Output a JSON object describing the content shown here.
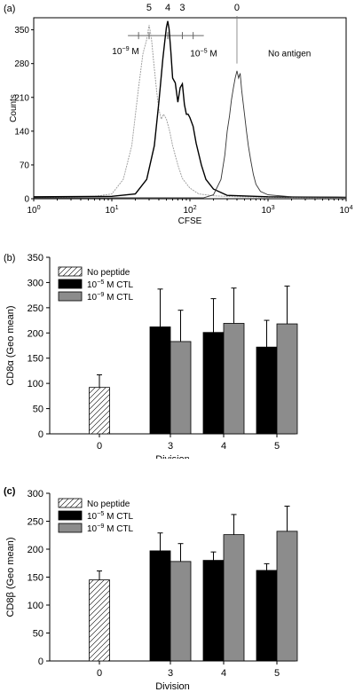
{
  "chart_data": [
    {
      "type": "line",
      "panel_label": "(a)",
      "xlabel": "CFSE",
      "ylabel": "Counts",
      "x_scale": "log",
      "xlim": [
        1,
        10000
      ],
      "ylim": [
        0,
        375
      ],
      "x_tick_labels": [
        {
          "base": "10",
          "exp": "0"
        },
        {
          "base": "10",
          "exp": "1"
        },
        {
          "base": "10",
          "exp": "2"
        },
        {
          "base": "10",
          "exp": "3"
        },
        {
          "base": "10",
          "exp": "4"
        }
      ],
      "y_ticks": [
        0,
        70,
        140,
        210,
        280,
        350
      ],
      "top_labels": [
        {
          "text": "5",
          "x": 30
        },
        {
          "text": "4",
          "x": 52
        },
        {
          "text": "3",
          "x": 80
        },
        {
          "text": "0",
          "x": 400
        }
      ],
      "annotations": [
        {
          "base": "10",
          "exp": "−9",
          "unit": " M",
          "x": 15,
          "y": 300
        },
        {
          "base": "10",
          "exp": "−5",
          "unit": " M",
          "x": 150,
          "y": 295
        },
        {
          "text": "No antigen",
          "x": 1000,
          "y": 295
        }
      ],
      "gate_bar": {
        "x_from": 22,
        "x_to": 110,
        "y": 338
      },
      "gate_ticks": [
        22,
        30,
        52,
        80,
        110
      ],
      "series": [
        {
          "style": "dotted-gray",
          "color": "#9a9a9a",
          "x": [
            1,
            3,
            6,
            10,
            14,
            18,
            22,
            25,
            28,
            30,
            32,
            34,
            36,
            38,
            40,
            43,
            46,
            50,
            55,
            60,
            70,
            80,
            100,
            130,
            200,
            400,
            1000,
            3000,
            10000
          ],
          "y": [
            3,
            4,
            5,
            10,
            40,
            110,
            230,
            300,
            330,
            360,
            335,
            290,
            250,
            215,
            185,
            165,
            175,
            165,
            140,
            110,
            70,
            42,
            22,
            10,
            6,
            4,
            3,
            2,
            2
          ]
        },
        {
          "style": "solid-black",
          "color": "#000000",
          "x": [
            1,
            10,
            20,
            28,
            35,
            40,
            45,
            48,
            50,
            52,
            54,
            57,
            60,
            65,
            70,
            75,
            80,
            85,
            90,
            95,
            100,
            110,
            120,
            140,
            160,
            200,
            300,
            1000,
            10000
          ],
          "y": [
            4,
            5,
            10,
            40,
            110,
            200,
            290,
            330,
            355,
            368,
            352,
            305,
            250,
            240,
            200,
            230,
            238,
            195,
            175,
            175,
            168,
            150,
            115,
            70,
            40,
            20,
            7,
            4,
            3
          ]
        },
        {
          "style": "thin-black",
          "color": "#333333",
          "x": [
            1,
            150,
            200,
            250,
            280,
            300,
            320,
            340,
            360,
            380,
            400,
            420,
            440,
            460,
            480,
            500,
            530,
            560,
            600,
            650,
            700,
            800,
            1000,
            2000,
            10000
          ],
          "y": [
            2,
            2,
            8,
            40,
            90,
            140,
            170,
            205,
            230,
            250,
            265,
            250,
            260,
            225,
            200,
            175,
            140,
            110,
            80,
            50,
            30,
            15,
            8,
            4,
            3
          ]
        }
      ]
    },
    {
      "type": "bar",
      "panel_label": "(b)",
      "xlabel": "Division",
      "ylabel": "CD8α (Geo mean)",
      "ylim": [
        0,
        350
      ],
      "y_ticks": [
        0,
        50,
        100,
        150,
        200,
        250,
        300,
        350
      ],
      "categories": [
        "0",
        "3",
        "4",
        "5"
      ],
      "series": [
        {
          "name": "No peptide",
          "fill": "hatch",
          "values": [
            92,
            null,
            null,
            null
          ],
          "errors": [
            25,
            null,
            null,
            null
          ]
        },
        {
          "name_parts": {
            "base": "10",
            "exp": "−5",
            "unit": " M CTL"
          },
          "fill": "#000000",
          "values": [
            null,
            212,
            201,
            172
          ],
          "errors": [
            null,
            75,
            67,
            53
          ]
        },
        {
          "name_parts": {
            "base": "10",
            "exp": "−9",
            "unit": " M CTL"
          },
          "fill": "#8c8c8c",
          "values": [
            null,
            183,
            219,
            218
          ],
          "errors": [
            null,
            62,
            70,
            75
          ]
        }
      ]
    },
    {
      "type": "bar",
      "panel_label": "(c)",
      "xlabel": "Division",
      "ylabel": "CD8β (Geo mean)",
      "ylim": [
        0,
        300
      ],
      "y_ticks": [
        0,
        50,
        100,
        150,
        200,
        250,
        300
      ],
      "categories": [
        "0",
        "3",
        "4",
        "5"
      ],
      "series": [
        {
          "name": "No peptide",
          "fill": "hatch",
          "values": [
            145,
            null,
            null,
            null
          ],
          "errors": [
            16,
            null,
            null,
            null
          ]
        },
        {
          "name_parts": {
            "base": "10",
            "exp": "−5",
            "unit": " M CTL"
          },
          "fill": "#000000",
          "values": [
            null,
            197,
            180,
            162
          ],
          "errors": [
            null,
            32,
            15,
            12
          ]
        },
        {
          "name_parts": {
            "base": "10",
            "exp": "−9",
            "unit": " M CTL"
          },
          "fill": "#8c8c8c",
          "values": [
            null,
            178,
            226,
            232
          ],
          "errors": [
            null,
            32,
            36,
            45
          ]
        }
      ]
    }
  ]
}
